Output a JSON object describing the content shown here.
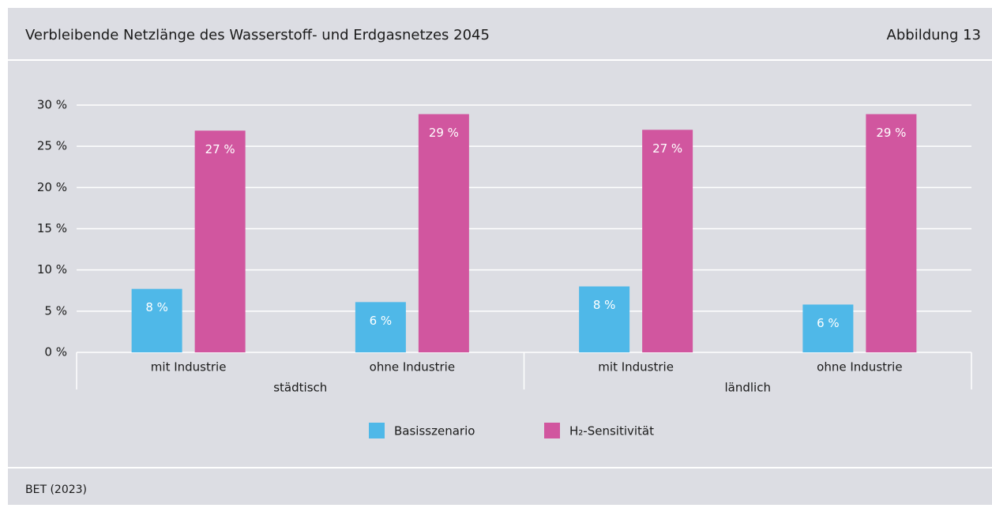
{
  "chart_data": {
    "type": "bar",
    "title": "Verbleibende Netzlänge des Wasserstoff- und Erdgasnetzes 2045",
    "figure_label": "Abbildung 13",
    "source": "BET (2023)",
    "categories": [
      "mit Industrie",
      "ohne Industrie",
      "mit Industrie",
      "ohne Industrie"
    ],
    "groups": [
      "städtisch",
      "ländlich"
    ],
    "series": [
      {
        "name": "Basisszenario",
        "color": "#4fb8e8",
        "values": [
          7.7,
          6.1,
          8.0,
          5.8
        ],
        "value_labels": [
          "8 %",
          "6 %",
          "8 %",
          "6 %"
        ]
      },
      {
        "name": "H₂-Sensitivität",
        "color": "#d1569f",
        "values": [
          26.9,
          28.9,
          27.0,
          28.9
        ],
        "value_labels": [
          "27 %",
          "29 %",
          "27 %",
          "29 %"
        ]
      }
    ],
    "ylim": [
      0,
      30
    ],
    "yticks": [
      {
        "value": 0,
        "label": "0 %"
      },
      {
        "value": 5,
        "label": "5 %"
      },
      {
        "value": 10,
        "label": "10 %"
      },
      {
        "value": 15,
        "label": "15 %"
      },
      {
        "value": 20,
        "label": "20 %"
      },
      {
        "value": 25,
        "label": "25 %"
      },
      {
        "value": 30,
        "label": "30 %"
      }
    ],
    "grid": true,
    "legend": "bottom"
  }
}
